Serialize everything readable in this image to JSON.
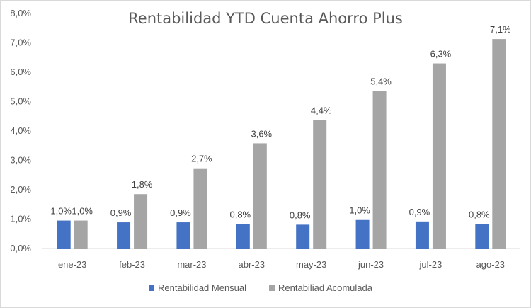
{
  "chart_data": {
    "type": "bar",
    "title": "Rentabilidad YTD Cuenta Ahorro Plus",
    "xlabel": "",
    "ylabel": "",
    "categories": [
      "ene-23",
      "feb-23",
      "mar-23",
      "abr-23",
      "may-23",
      "jun-23",
      "jul-23",
      "ago-23"
    ],
    "series": [
      {
        "name": "Rentabilidad Mensual",
        "color": "#4472c4",
        "values": [
          0.95,
          0.89,
          0.89,
          0.83,
          0.81,
          0.97,
          0.92,
          0.83
        ],
        "labels": [
          "1,0%",
          "0,9%",
          "0,9%",
          "0,8%",
          "0,8%",
          "1,0%",
          "0,9%",
          "0,8%"
        ]
      },
      {
        "name": "Rentabiliad Acomulada",
        "color": "#a5a5a5",
        "values": [
          0.95,
          1.85,
          2.73,
          3.58,
          4.37,
          5.36,
          6.3,
          7.13
        ],
        "labels": [
          "1,0%",
          "1,8%",
          "2,7%",
          "3,6%",
          "4,4%",
          "5,4%",
          "6,3%",
          "7,1%"
        ]
      }
    ],
    "ylim": [
      0,
      8
    ],
    "yticks": [
      "0,0%",
      "1,0%",
      "2,0%",
      "3,0%",
      "4,0%",
      "5,0%",
      "6,0%",
      "7,0%",
      "8,0%"
    ],
    "grid": false,
    "legend_position": "bottom"
  }
}
